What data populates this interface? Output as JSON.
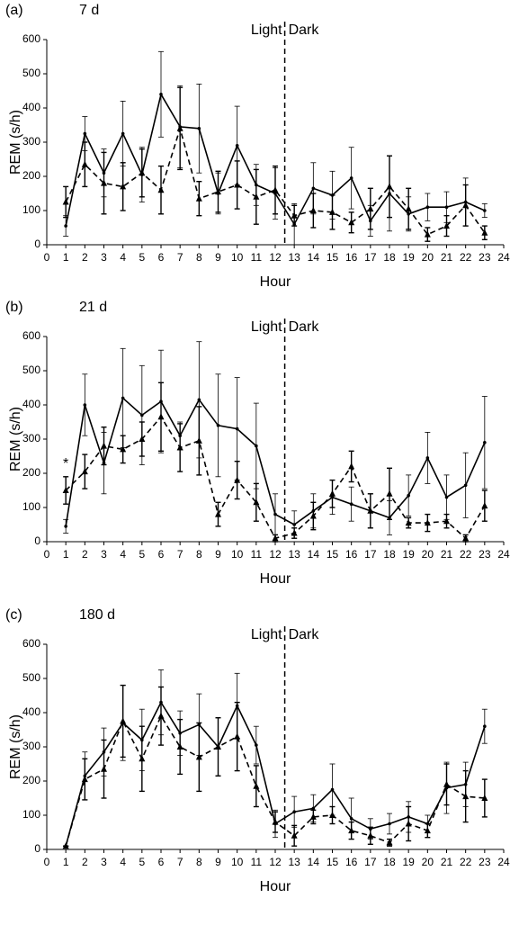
{
  "chart_data": [
    {
      "type": "line",
      "panel_label": "(a)",
      "title": "7 d",
      "xlabel": "Hour",
      "ylabel": "REM (s/h)",
      "annotations": [
        "Light",
        "Dark"
      ],
      "divider": 12.5,
      "x": [
        1,
        2,
        3,
        4,
        5,
        6,
        7,
        8,
        9,
        10,
        11,
        12,
        13,
        14,
        15,
        16,
        17,
        18,
        19,
        20,
        21,
        22,
        23
      ],
      "xlim": [
        0,
        24
      ],
      "xticks": [
        0,
        1,
        2,
        3,
        4,
        5,
        6,
        7,
        8,
        9,
        10,
        11,
        12,
        13,
        14,
        15,
        16,
        17,
        18,
        19,
        20,
        21,
        22,
        23,
        24
      ],
      "ylim": [
        0,
        600
      ],
      "yticks": [
        0,
        100,
        200,
        300,
        400,
        500,
        600
      ],
      "series": [
        {
          "color": "#000000",
          "line_style": "solid",
          "marker": "circle",
          "values": [
            55,
            325,
            210,
            325,
            205,
            440,
            345,
            340,
            150,
            290,
            175,
            150,
            60,
            165,
            145,
            195,
            70,
            150,
            90,
            110,
            110,
            125,
            100
          ],
          "errors": [
            30,
            50,
            70,
            95,
            80,
            125,
            120,
            130,
            60,
            115,
            60,
            75,
            60,
            75,
            70,
            90,
            45,
            110,
            50,
            40,
            45,
            70,
            20
          ]
        },
        {
          "color": "#000000",
          "line_style": "dashed",
          "marker": "triangle",
          "values": [
            125,
            235,
            180,
            170,
            210,
            160,
            340,
            135,
            155,
            175,
            140,
            160,
            85,
            100,
            95,
            65,
            105,
            170,
            105,
            30,
            55,
            115,
            35
          ],
          "errors": [
            45,
            65,
            90,
            70,
            70,
            70,
            120,
            50,
            60,
            70,
            80,
            70,
            30,
            50,
            50,
            30,
            60,
            90,
            60,
            20,
            30,
            60,
            20
          ]
        }
      ]
    },
    {
      "type": "line",
      "panel_label": "(b)",
      "title": "21 d",
      "xlabel": "Hour",
      "ylabel": "REM (s/h)",
      "annotations": [
        "Light",
        "Dark"
      ],
      "divider": 12.5,
      "significance": "*",
      "x": [
        1,
        2,
        3,
        4,
        5,
        6,
        7,
        8,
        9,
        10,
        11,
        12,
        13,
        14,
        15,
        16,
        17,
        18,
        19,
        20,
        21,
        22,
        23
      ],
      "xlim": [
        0,
        24
      ],
      "xticks": [
        0,
        1,
        2,
        3,
        4,
        5,
        6,
        7,
        8,
        9,
        10,
        11,
        12,
        13,
        14,
        15,
        16,
        17,
        18,
        19,
        20,
        21,
        22,
        23,
        24
      ],
      "ylim": [
        0,
        600
      ],
      "yticks": [
        0,
        100,
        200,
        300,
        400,
        500,
        600
      ],
      "series": [
        {
          "color": "#000000",
          "line_style": "solid",
          "marker": "circle",
          "values": [
            45,
            400,
            230,
            420,
            370,
            410,
            310,
            415,
            340,
            330,
            280,
            80,
            50,
            90,
            130,
            110,
            90,
            70,
            135,
            245,
            130,
            165,
            290
          ],
          "errors": [
            20,
            90,
            90,
            145,
            145,
            150,
            40,
            170,
            150,
            150,
            125,
            60,
            40,
            50,
            50,
            50,
            50,
            50,
            60,
            75,
            65,
            95,
            135
          ]
        },
        {
          "color": "#000000",
          "line_style": "dashed",
          "marker": "triangle",
          "values": [
            150,
            205,
            280,
            270,
            300,
            365,
            275,
            295,
            80,
            180,
            115,
            10,
            25,
            75,
            140,
            220,
            90,
            140,
            55,
            55,
            60,
            10,
            105
          ],
          "errors": [
            40,
            50,
            55,
            40,
            50,
            100,
            70,
            100,
            35,
            55,
            55,
            10,
            15,
            40,
            40,
            45,
            50,
            75,
            15,
            25,
            20,
            10,
            45
          ]
        }
      ]
    },
    {
      "type": "line",
      "panel_label": "(c)",
      "title": "180 d",
      "xlabel": "Hour",
      "ylabel": "REM (s/h)",
      "annotations": [
        "Light",
        "Dark"
      ],
      "divider": 12.5,
      "x": [
        1,
        2,
        3,
        4,
        5,
        6,
        7,
        8,
        9,
        10,
        11,
        12,
        13,
        14,
        15,
        16,
        17,
        18,
        19,
        20,
        21,
        22,
        23
      ],
      "xlim": [
        0,
        24
      ],
      "xticks": [
        0,
        1,
        2,
        3,
        4,
        5,
        6,
        7,
        8,
        9,
        10,
        11,
        12,
        13,
        14,
        15,
        16,
        17,
        18,
        19,
        20,
        21,
        22,
        23,
        24
      ],
      "ylim": [
        0,
        600
      ],
      "yticks": [
        0,
        100,
        200,
        300,
        400,
        500,
        600
      ],
      "series": [
        {
          "color": "#000000",
          "line_style": "solid",
          "marker": "circle",
          "values": [
            10,
            215,
            285,
            370,
            320,
            430,
            340,
            365,
            300,
            420,
            305,
            75,
            110,
            120,
            175,
            90,
            60,
            75,
            95,
            75,
            180,
            190,
            360
          ],
          "errors": [
            0,
            70,
            70,
            110,
            90,
            95,
            65,
            90,
            85,
            95,
            55,
            40,
            45,
            40,
            75,
            60,
            30,
            30,
            45,
            25,
            75,
            65,
            50
          ]
        },
        {
          "color": "#000000",
          "line_style": "dashed",
          "marker": "triangle",
          "values": [
            10,
            205,
            235,
            375,
            265,
            390,
            300,
            270,
            300,
            330,
            185,
            80,
            40,
            95,
            100,
            55,
            40,
            20,
            75,
            55,
            190,
            155,
            150
          ],
          "errors": [
            0,
            60,
            85,
            105,
            95,
            85,
            80,
            100,
            85,
            100,
            60,
            30,
            30,
            20,
            25,
            25,
            25,
            10,
            50,
            20,
            60,
            75,
            55
          ]
        }
      ]
    }
  ]
}
